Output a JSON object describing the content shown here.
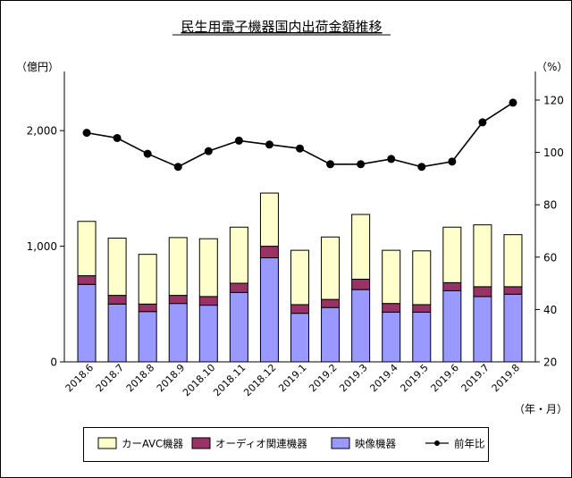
{
  "chart_data": {
    "type": "bar",
    "stacked": true,
    "title": "民生用電子機器国内出荷金額推移",
    "left_unit": "（億円）",
    "right_unit": "（%）",
    "x_unit": "（年・月）",
    "left_ylim": [
      0,
      2500
    ],
    "left_ticks": [
      0,
      1000,
      2000
    ],
    "left_tick_labels": [
      "0",
      "1,000",
      "2,000"
    ],
    "right_ylim": [
      20,
      130
    ],
    "right_ticks": [
      20,
      40,
      60,
      80,
      100,
      120
    ],
    "right_tick_labels": [
      "20",
      "40",
      "60",
      "80",
      "100",
      "120"
    ],
    "categories": [
      "2018.6",
      "2018.7",
      "2018.8",
      "2018.9",
      "2018.10",
      "2018.11",
      "2018.12",
      "2019.1",
      "2019.2",
      "2019.3",
      "2019.4",
      "2019.5",
      "2019.6",
      "2019.7",
      "2019.8"
    ],
    "series": [
      {
        "name": "映像機器",
        "color": "#9999ff",
        "values": [
          670,
          500,
          435,
          505,
          490,
          600,
          900,
          420,
          470,
          625,
          430,
          430,
          615,
          565,
          585
        ]
      },
      {
        "name": "オーディオ関連機器",
        "color": "#993366",
        "values": [
          75,
          75,
          65,
          70,
          75,
          80,
          100,
          75,
          70,
          90,
          75,
          65,
          70,
          85,
          65
        ]
      },
      {
        "name": "カーAVC機器",
        "color": "#ffffcc",
        "values": [
          470,
          495,
          430,
          500,
          500,
          485,
          460,
          470,
          540,
          560,
          460,
          465,
          480,
          535,
          450
        ]
      }
    ],
    "line_series": {
      "name": "前年比",
      "color": "#000000",
      "values": [
        107.5,
        105.5,
        99.5,
        94.5,
        100.5,
        104.5,
        103,
        101.5,
        95.5,
        95.5,
        97.5,
        94.5,
        96.5,
        111.5,
        119
      ]
    },
    "legend_order": [
      "カーAVC機器",
      "オーディオ関連機器",
      "映像機器",
      "前年比"
    ]
  }
}
